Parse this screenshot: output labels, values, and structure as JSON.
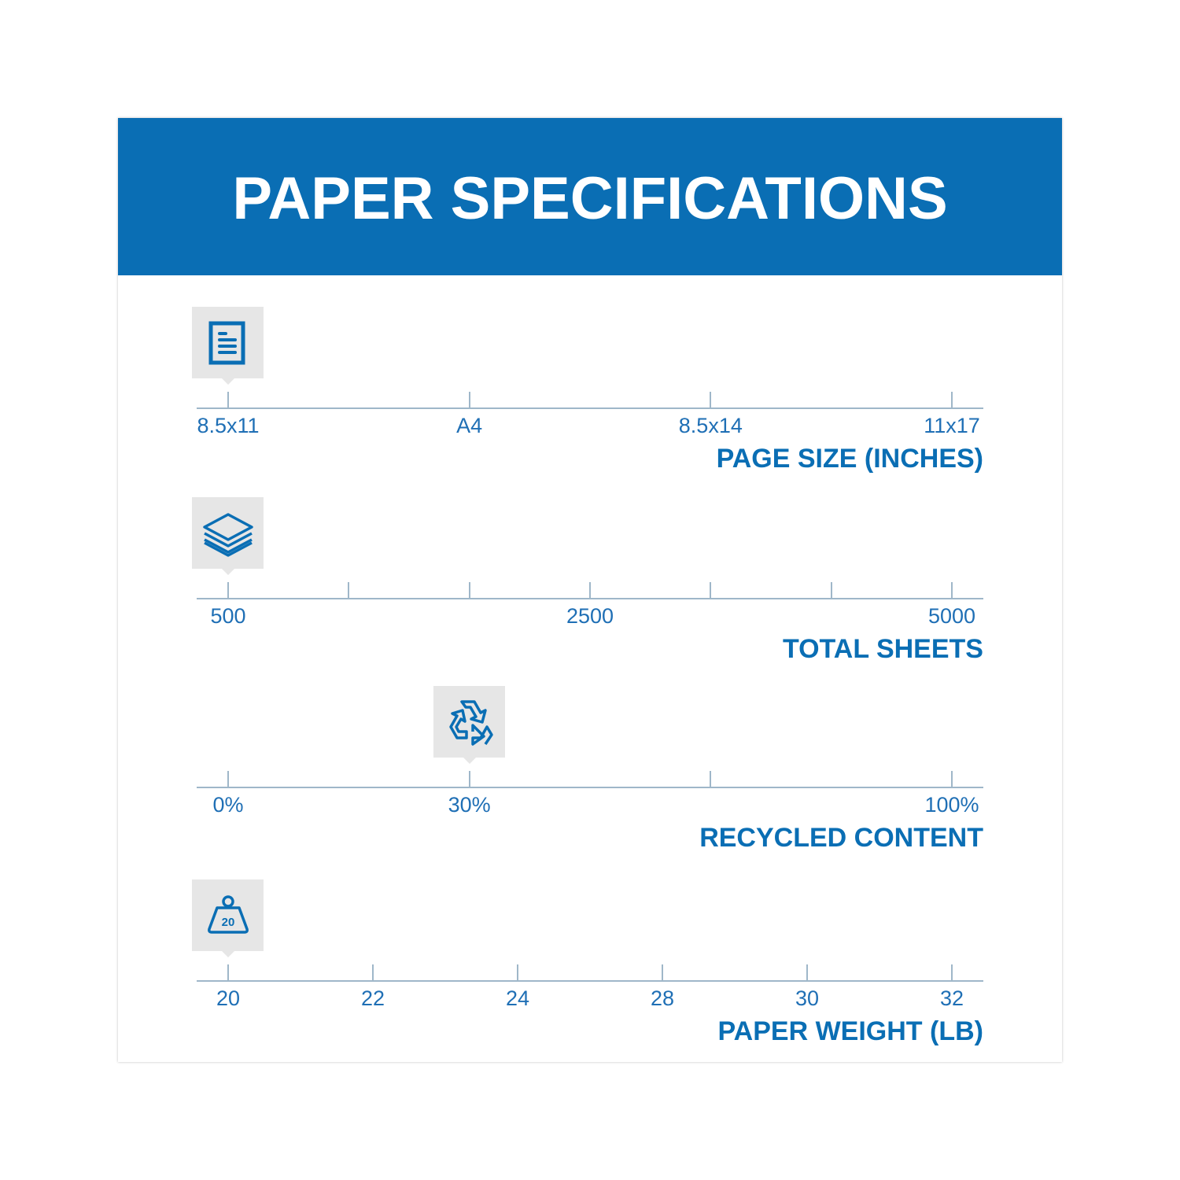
{
  "title": "PAPER SPECIFICATIONS",
  "colors": {
    "brand_blue": "#0a6eb4",
    "label_blue": "#1f6fb5",
    "marker_bg": "#e6e6e6",
    "axis": "#9fb7c9"
  },
  "scales": [
    {
      "title": "PAGE SIZE (INCHES)",
      "icon": "document-icon",
      "ticks": [
        "8.5x11",
        "A4",
        "8.5x14",
        "11x17"
      ],
      "labeled": [
        0,
        1,
        2,
        3
      ],
      "tick_count": 4,
      "selected_tick": 0,
      "selected_value": "8.5x11"
    },
    {
      "title": "TOTAL SHEETS",
      "icon": "paper-stack-icon",
      "ticks": [
        "500",
        "",
        "",
        "2500",
        "",
        "",
        "5000"
      ],
      "labeled": [
        0,
        3,
        6
      ],
      "tick_count": 7,
      "selected_tick": 0,
      "selected_value": "500"
    },
    {
      "title": "RECYCLED CONTENT",
      "icon": "recycle-icon",
      "ticks": [
        "0%",
        "30%",
        "",
        "100%"
      ],
      "labeled": [
        0,
        1,
        3
      ],
      "tick_count": 4,
      "selected_tick": 1,
      "selected_value": "30%"
    },
    {
      "title": "PAPER WEIGHT (LB)",
      "icon": "weight-icon",
      "icon_text": "20",
      "ticks": [
        "20",
        "22",
        "24",
        "28",
        "30",
        "32"
      ],
      "labeled": [
        0,
        1,
        2,
        3,
        4,
        5
      ],
      "tick_count": 6,
      "selected_tick": 0,
      "selected_value": "20"
    }
  ]
}
